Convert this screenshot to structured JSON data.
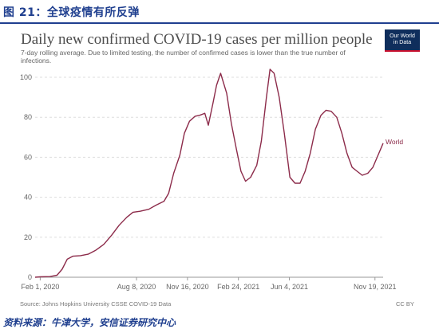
{
  "figure": {
    "number_label": "图 21：全球疫情有所反弹",
    "footer": "资料来源：牛津大学，安信证券研究中心"
  },
  "owid": {
    "title": "Daily new confirmed COVID-19 cases per million people",
    "subtitle": "7-day rolling average. Due to limited testing, the number of confirmed cases is lower than the true number of infections.",
    "logo_line1": "Our World",
    "logo_line2": "in Data",
    "source": "Source: Johns Hopkins University CSSE COVID-19 Data",
    "license": "CC BY"
  },
  "colors": {
    "series": "#8c2b4a",
    "header_blue": "#1f3f8f",
    "grid": "#dddddd"
  },
  "chart_data": {
    "type": "line",
    "title": "Daily new confirmed COVID-19 cases per million people",
    "ylim": [
      0,
      100
    ],
    "yticks": [
      0,
      20,
      40,
      60,
      80,
      100
    ],
    "x_tick_labels": [
      "Feb 1, 2020",
      "Aug 8, 2020",
      "Nov 16, 2020",
      "Feb 24, 2021",
      "Jun 4, 2021",
      "Nov 19, 2021"
    ],
    "x_ticks": [
      "2020-02-01",
      "2020-08-08",
      "2020-11-16",
      "2021-02-24",
      "2021-06-04",
      "2021-11-19"
    ],
    "grid": true,
    "series": [
      {
        "name": "World",
        "x": [
          "2020-01-22",
          "2020-02-01",
          "2020-02-20",
          "2020-03-05",
          "2020-03-15",
          "2020-03-25",
          "2020-04-05",
          "2020-04-20",
          "2020-05-05",
          "2020-05-20",
          "2020-06-05",
          "2020-06-20",
          "2020-07-05",
          "2020-07-20",
          "2020-08-01",
          "2020-08-15",
          "2020-09-01",
          "2020-09-15",
          "2020-10-01",
          "2020-10-10",
          "2020-10-20",
          "2020-11-01",
          "2020-11-10",
          "2020-11-20",
          "2020-12-01",
          "2020-12-10",
          "2020-12-20",
          "2020-12-27",
          "2021-01-05",
          "2021-01-12",
          "2021-01-20",
          "2021-02-01",
          "2021-02-10",
          "2021-02-20",
          "2021-03-01",
          "2021-03-10",
          "2021-03-20",
          "2021-04-01",
          "2021-04-10",
          "2021-04-20",
          "2021-04-27",
          "2021-05-05",
          "2021-05-15",
          "2021-05-25",
          "2021-06-05",
          "2021-06-15",
          "2021-06-25",
          "2021-07-05",
          "2021-07-15",
          "2021-07-25",
          "2021-08-05",
          "2021-08-15",
          "2021-08-25",
          "2021-09-05",
          "2021-09-15",
          "2021-09-25",
          "2021-10-05",
          "2021-10-15",
          "2021-10-25",
          "2021-11-05",
          "2021-11-15",
          "2021-11-25",
          "2021-12-05"
        ],
        "y": [
          0,
          0.2,
          0.3,
          1.0,
          4.0,
          9.0,
          10.5,
          10.8,
          11.5,
          13.5,
          16.5,
          21,
          26,
          30,
          32.5,
          33,
          34,
          36,
          38,
          42,
          52,
          61,
          72,
          78,
          80.5,
          81,
          82,
          76,
          87,
          96,
          102,
          92,
          77,
          64,
          53,
          48,
          50,
          56,
          68,
          90,
          104,
          102,
          90,
          72,
          50,
          47,
          47,
          53,
          62,
          74,
          81,
          83.5,
          83,
          80,
          72,
          62,
          55,
          53,
          51,
          52,
          55,
          61,
          67
        ]
      }
    ]
  }
}
